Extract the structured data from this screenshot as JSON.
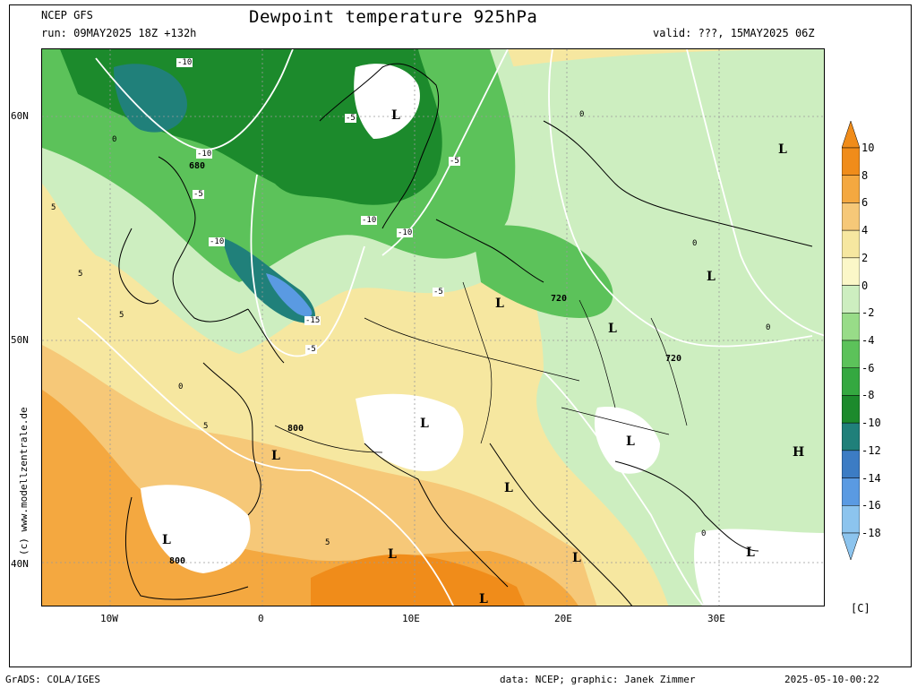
{
  "header": {
    "model": "NCEP  GFS",
    "run": "run: 09MAY2025 18Z +132h",
    "title": "Dewpoint temperature 925hPa",
    "valid": "valid: ???, 15MAY2025 06Z"
  },
  "side_credit": "(c) www.modellzentrale.de",
  "axes": {
    "lat_labels": [
      "60N",
      "50N",
      "40N"
    ],
    "lon_labels": [
      "10W",
      "0",
      "10E",
      "20E",
      "30E"
    ]
  },
  "legend": {
    "unit": "[C]",
    "levels": [
      "10",
      "8",
      "6",
      "4",
      "2",
      "0",
      "-2",
      "-4",
      "-6",
      "-8",
      "-10",
      "-12",
      "-14",
      "-16",
      "-18"
    ],
    "colors": [
      "#f08c1a",
      "#f4a840",
      "#f6c878",
      "#f6e7a0",
      "#fbf7c8",
      "#cdeec0",
      "#98dc88",
      "#5cc25a",
      "#34a840",
      "#1c8a2c",
      "#20807a",
      "#3c7cc4",
      "#5a9ae2",
      "#8cc4ee"
    ]
  },
  "map": {
    "pressure_labels": [
      "680",
      "720",
      "720",
      "800",
      "800"
    ],
    "contour_labels": [
      "-10",
      "-10",
      "-10",
      "-5",
      "-5",
      "-5",
      "-10",
      "-10",
      "-15",
      "-5",
      "-5",
      "0",
      "0",
      "5",
      "5",
      "5",
      "0",
      "0",
      "5",
      "5",
      "0",
      "0"
    ],
    "pressure_centers": [
      "L",
      "L",
      "L",
      "L",
      "L",
      "L",
      "L",
      "L",
      "L",
      "L",
      "L",
      "H",
      "L",
      "L",
      "L"
    ]
  },
  "footer": {
    "left": "GrADS: COLA/IGES",
    "credit": "data: NCEP; graphic: Janek Zimmer",
    "timestamp": "2025-05-10-00:22"
  }
}
